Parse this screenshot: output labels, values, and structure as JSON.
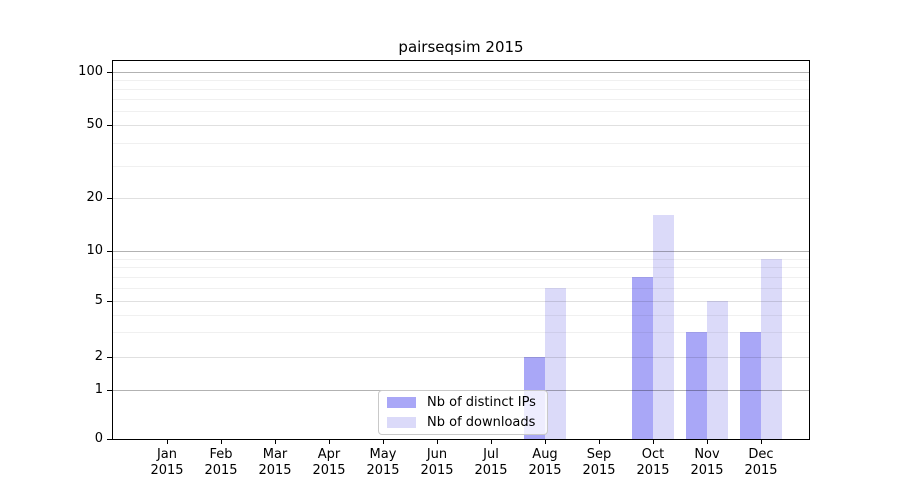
{
  "title": "pairseqsim 2015",
  "legend": {
    "items": [
      {
        "label": "Nb of distinct IPs",
        "color": "#a9a7f7"
      },
      {
        "label": "Nb of downloads",
        "color": "#dbdaf9"
      }
    ]
  },
  "chart_data": {
    "type": "bar",
    "title": "pairseqsim 2015",
    "categories": [
      "Jan 2015",
      "Feb 2015",
      "Mar 2015",
      "Apr 2015",
      "May 2015",
      "Jun 2015",
      "Jul 2015",
      "Aug 2015",
      "Sep 2015",
      "Oct 2015",
      "Nov 2015",
      "Dec 2015"
    ],
    "series": [
      {
        "name": "Nb of distinct IPs",
        "color": "#a9a7f7",
        "values": [
          0,
          0,
          0,
          0,
          0,
          0,
          0,
          2,
          0,
          7,
          3,
          3
        ]
      },
      {
        "name": "Nb of downloads",
        "color": "#dbdaf9",
        "values": [
          0,
          0,
          0,
          0,
          0,
          0,
          0,
          6,
          0,
          16,
          5,
          9
        ]
      }
    ],
    "xlabel": "",
    "ylabel": "",
    "yscale": "symlog",
    "ylim": [
      0,
      100
    ],
    "y_major_ticks": [
      0,
      1,
      2,
      5,
      10,
      20,
      50,
      100
    ],
    "y_decade_gridlines": [
      1,
      10,
      100
    ],
    "y_labeled_minor_gridlines": [
      2,
      5,
      20,
      50
    ],
    "y_minor_gridlines": [
      3,
      4,
      6,
      7,
      8,
      9,
      30,
      40,
      60,
      70,
      80,
      90
    ],
    "grid": true,
    "legend_position": "lower center"
  }
}
